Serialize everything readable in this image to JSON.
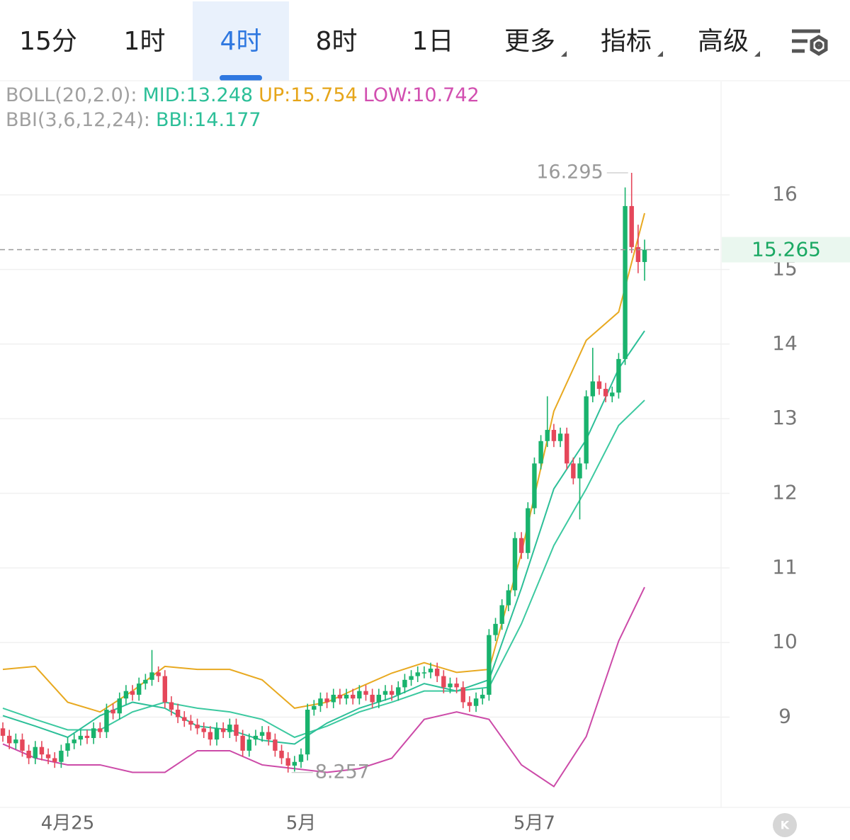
{
  "tabs": [
    "15分",
    "1时",
    "4时",
    "8时",
    "1日",
    "更多",
    "指标",
    "高级"
  ],
  "active_tab": 2,
  "chart_data": {
    "type": "candlestick",
    "legend_texts": [
      {
        "text": "BOLL(20,2.0):",
        "color": "#a0a0a0"
      },
      {
        "text": "MID:13.248",
        "color": "#2cbf98"
      },
      {
        "text": "UP:15.754",
        "color": "#e6a519"
      },
      {
        "text": "LOW:10.742",
        "color": "#d24fb0"
      },
      {
        "text": "BBI(3,6,12,24):",
        "color": "#a0a0a0"
      },
      {
        "text": "BBI:14.177",
        "color": "#2cbf98"
      }
    ],
    "up_color": "#19b36d",
    "down_color": "#e5475a",
    "xlim": [
      -0.44,
      110.8
    ],
    "ylim": [
      7.79,
      17.52
    ],
    "xticks": [
      {
        "value": 10,
        "label": "4月25"
      },
      {
        "value": 46,
        "label": "5月"
      },
      {
        "value": 82,
        "label": "5月7"
      }
    ],
    "yticks": [
      9,
      10,
      11,
      12,
      13,
      14,
      15,
      16
    ],
    "grid": true,
    "open": [
      8.85,
      8.75,
      8.65,
      8.7,
      8.55,
      8.45,
      8.6,
      8.5,
      8.45,
      8.4,
      8.55,
      8.65,
      8.7,
      8.75,
      8.72,
      8.85,
      8.8,
      9.1,
      9.05,
      9.25,
      9.35,
      9.3,
      9.45,
      9.5,
      9.6,
      9.55,
      9.2,
      9.1,
      9.0,
      8.95,
      8.9,
      8.85,
      8.8,
      8.7,
      8.85,
      8.8,
      8.9,
      8.75,
      8.55,
      8.7,
      8.75,
      8.8,
      8.7,
      8.55,
      8.45,
      8.35,
      8.4,
      8.5,
      9.1,
      9.15,
      9.25,
      9.2,
      9.3,
      9.25,
      9.3,
      9.25,
      9.35,
      9.3,
      9.2,
      9.3,
      9.35,
      9.3,
      9.4,
      9.5,
      9.55,
      9.6,
      9.6,
      9.65,
      9.55,
      9.4,
      9.45,
      9.4,
      9.2,
      9.15,
      9.25,
      9.3,
      10.1,
      10.25,
      10.5,
      10.7,
      11.4,
      11.2,
      11.8,
      12.4,
      12.7,
      12.85,
      12.7,
      12.8,
      12.4,
      12.2,
      12.4,
      13.3,
      13.5,
      13.4,
      13.3,
      13.35,
      13.8,
      15.85,
      15.3,
      15.1
    ],
    "high": [
      8.93,
      8.83,
      8.78,
      8.78,
      8.63,
      8.68,
      8.68,
      8.58,
      8.53,
      8.63,
      8.73,
      8.78,
      8.83,
      8.83,
      8.93,
      8.93,
      9.18,
      9.18,
      9.33,
      9.43,
      9.43,
      9.53,
      9.58,
      9.9,
      9.68,
      9.63,
      9.28,
      9.18,
      9.08,
      9.03,
      8.98,
      8.93,
      8.88,
      8.93,
      8.93,
      8.98,
      8.98,
      8.83,
      8.78,
      8.83,
      8.88,
      8.88,
      8.78,
      8.63,
      8.53,
      8.48,
      8.58,
      9.18,
      9.23,
      9.33,
      9.33,
      9.38,
      9.38,
      9.38,
      9.38,
      9.43,
      9.43,
      9.38,
      9.38,
      9.43,
      9.43,
      9.48,
      9.58,
      9.63,
      9.68,
      9.68,
      9.73,
      9.73,
      9.63,
      9.53,
      9.53,
      9.48,
      9.28,
      9.33,
      9.38,
      10.18,
      10.33,
      10.58,
      10.78,
      11.48,
      11.48,
      11.88,
      12.48,
      12.78,
      13.3,
      12.93,
      12.88,
      12.88,
      12.48,
      12.48,
      13.38,
      13.95,
      13.58,
      13.48,
      13.43,
      13.88,
      16.1,
      16.295,
      15.6,
      15.4
    ],
    "low": [
      8.67,
      8.57,
      8.57,
      8.47,
      8.37,
      8.37,
      8.42,
      8.37,
      8.32,
      8.32,
      8.47,
      8.57,
      8.62,
      8.64,
      8.64,
      8.72,
      8.72,
      8.97,
      8.97,
      9.17,
      9.22,
      9.22,
      9.37,
      9.42,
      9.47,
      9.12,
      9.02,
      8.92,
      8.87,
      8.82,
      8.77,
      8.72,
      8.62,
      8.62,
      8.72,
      8.72,
      8.67,
      8.47,
      8.47,
      8.62,
      8.67,
      8.62,
      8.47,
      8.37,
      8.257,
      8.27,
      8.32,
      8.42,
      9.02,
      9.07,
      9.12,
      9.12,
      9.17,
      9.17,
      9.17,
      9.17,
      9.22,
      9.12,
      9.12,
      9.22,
      9.22,
      9.22,
      9.32,
      9.42,
      9.47,
      9.52,
      9.52,
      9.47,
      9.32,
      9.32,
      9.32,
      9.12,
      9.07,
      9.07,
      9.17,
      9.22,
      10.02,
      10.17,
      10.42,
      10.62,
      11.12,
      11.12,
      11.72,
      12.32,
      12.62,
      12.62,
      12.62,
      12.32,
      12.12,
      11.65,
      12.32,
      13.22,
      13.32,
      13.22,
      13.22,
      13.27,
      13.72,
      15.22,
      14.95,
      14.85
    ],
    "close": [
      8.75,
      8.65,
      8.7,
      8.55,
      8.45,
      8.6,
      8.5,
      8.45,
      8.4,
      8.55,
      8.65,
      8.7,
      8.75,
      8.72,
      8.85,
      8.8,
      9.1,
      9.05,
      9.25,
      9.35,
      9.3,
      9.45,
      9.5,
      9.6,
      9.55,
      9.2,
      9.1,
      9.0,
      8.95,
      8.9,
      8.85,
      8.8,
      8.7,
      8.85,
      8.8,
      8.9,
      8.75,
      8.55,
      8.7,
      8.75,
      8.8,
      8.7,
      8.55,
      8.45,
      8.35,
      8.4,
      8.5,
      9.1,
      9.15,
      9.25,
      9.2,
      9.3,
      9.25,
      9.3,
      9.25,
      9.35,
      9.3,
      9.2,
      9.3,
      9.35,
      9.3,
      9.4,
      9.5,
      9.55,
      9.6,
      9.6,
      9.65,
      9.55,
      9.4,
      9.45,
      9.4,
      9.2,
      9.15,
      9.25,
      9.3,
      10.1,
      10.25,
      10.5,
      10.7,
      11.4,
      11.2,
      11.8,
      12.4,
      12.7,
      12.85,
      12.7,
      12.8,
      12.4,
      12.2,
      12.4,
      13.3,
      13.5,
      13.4,
      13.3,
      13.35,
      13.8,
      15.85,
      15.3,
      15.1,
      15.265
    ],
    "series": [
      {
        "name": "UP",
        "color": "#e8a920",
        "x": [
          0,
          5,
          10,
          15,
          20,
          25,
          30,
          35,
          40,
          45,
          50,
          55,
          60,
          65,
          70,
          75,
          80,
          85,
          90,
          95,
          99
        ],
        "values": [
          9.64,
          9.68,
          9.2,
          9.07,
          9.35,
          9.68,
          9.64,
          9.64,
          9.5,
          9.12,
          9.2,
          9.4,
          9.59,
          9.73,
          9.6,
          9.64,
          11.2,
          13.1,
          14.05,
          14.43,
          15.754
        ]
      },
      {
        "name": "MID",
        "color": "#3cc9a0",
        "x": [
          0,
          5,
          10,
          15,
          20,
          25,
          30,
          35,
          40,
          45,
          50,
          55,
          60,
          65,
          70,
          75,
          80,
          85,
          90,
          95,
          99
        ],
        "values": [
          9.12,
          8.97,
          8.83,
          8.83,
          9.07,
          9.2,
          9.12,
          9.07,
          8.97,
          8.73,
          8.88,
          9.07,
          9.2,
          9.35,
          9.35,
          9.4,
          10.25,
          11.3,
          12.06,
          12.91,
          13.248
        ]
      },
      {
        "name": "LOW",
        "color": "#cc4aa8",
        "x": [
          0,
          5,
          10,
          15,
          20,
          25,
          30,
          35,
          40,
          45,
          50,
          55,
          60,
          65,
          70,
          75,
          80,
          85,
          90,
          95,
          99
        ],
        "values": [
          8.64,
          8.45,
          8.36,
          8.36,
          8.26,
          8.26,
          8.55,
          8.55,
          8.36,
          8.31,
          8.26,
          8.31,
          8.45,
          8.97,
          9.07,
          8.97,
          8.36,
          8.07,
          8.74,
          10.02,
          10.742
        ]
      },
      {
        "name": "BBI",
        "color": "#2cbf98",
        "x": [
          0,
          5,
          10,
          15,
          20,
          25,
          30,
          35,
          40,
          45,
          50,
          55,
          60,
          65,
          70,
          75,
          80,
          85,
          90,
          95,
          99
        ],
        "values": [
          9.02,
          8.88,
          8.73,
          9.02,
          9.2,
          9.12,
          8.88,
          8.83,
          8.69,
          8.64,
          8.92,
          9.12,
          9.26,
          9.45,
          9.35,
          9.5,
          10.73,
          12.06,
          12.72,
          13.67,
          14.177
        ]
      }
    ]
  }
}
